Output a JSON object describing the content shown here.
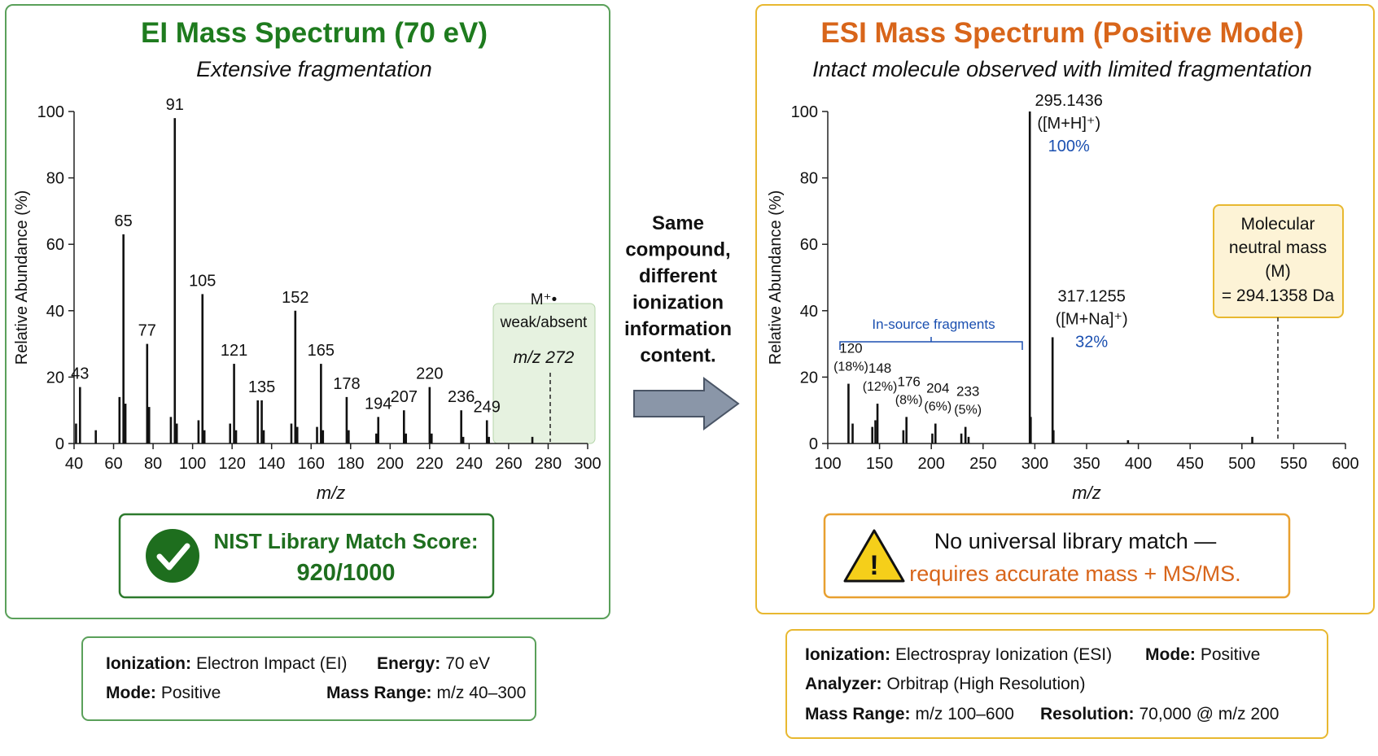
{
  "chart_data": [
    {
      "type": "bar",
      "title": "EI Mass Spectrum (70 eV)",
      "subtitle": "Extensive fragmentation",
      "xlabel": "m/z",
      "ylabel": "Relative Abundance (%)",
      "color": "#111111",
      "title_color": "#1e7b1e",
      "series": [
        {
          "x": [
            43,
            65,
            77,
            91,
            105,
            121,
            135,
            152,
            165,
            178,
            194,
            207,
            220,
            236,
            249
          ],
          "values": [
            17,
            63,
            30,
            98,
            45,
            24,
            13,
            40,
            24,
            14,
            8,
            10,
            17,
            10,
            7
          ]
        },
        {
          "x": [
            41,
            51,
            63,
            66,
            78,
            89,
            92,
            103,
            106,
            119,
            122,
            133,
            136,
            150,
            153,
            163,
            166,
            179,
            193,
            208,
            221,
            237,
            250,
            272
          ],
          "values": [
            6,
            4,
            14,
            12,
            11,
            8,
            6,
            7,
            4,
            6,
            4,
            13,
            4,
            6,
            5,
            5,
            4,
            4,
            3,
            3,
            3,
            2,
            2,
            2
          ]
        }
      ],
      "xlim": [
        40,
        300
      ],
      "xticks": [
        40,
        60,
        80,
        100,
        120,
        140,
        160,
        180,
        200,
        220,
        240,
        260,
        280,
        300
      ],
      "ylim": [
        0,
        100
      ],
      "yticks": [
        0,
        20,
        40,
        60,
        80,
        100
      ],
      "annotation": [
        "M⁺•",
        "weak/absent",
        "m/z 272"
      ]
    },
    {
      "type": "bar",
      "title": "ESI Mass Spectrum (Positive Mode)",
      "subtitle": "Intact molecule observed with limited fragmentation",
      "xlabel": "m/z",
      "ylabel": "Relative Abundance (%)",
      "color": "#111111",
      "title_color": "#d8651a",
      "series": [
        {
          "x": [
            120,
            148,
            176,
            204,
            233,
            295.1436,
            317.1255
          ],
          "values": [
            18,
            12,
            8,
            6,
            5,
            100,
            32
          ],
          "value_labels": [
            "(18%)",
            "(12%)",
            "(8%)",
            "(6%)",
            "(5%)",
            "100%",
            "32%"
          ],
          "ion_labels": [
            null,
            null,
            null,
            null,
            null,
            "([M+H]⁺)",
            "([M+Na]⁺)"
          ]
        },
        {
          "x": [
            124,
            143,
            146,
            173,
            201,
            229,
            236,
            296,
            318,
            390,
            510
          ],
          "values": [
            6,
            5,
            7,
            4,
            3,
            3,
            2,
            8,
            4,
            1,
            2
          ]
        }
      ],
      "xlim": [
        100,
        600
      ],
      "xticks": [
        100,
        150,
        200,
        250,
        300,
        350,
        400,
        450,
        500,
        550,
        600
      ],
      "ylim": [
        0,
        100
      ],
      "yticks": [
        0,
        20,
        40,
        60,
        80,
        100
      ],
      "bracket_label": "In-source fragments",
      "annotation": [
        "Molecular",
        "neutral mass",
        "(M)",
        "= 294.1358 Da"
      ]
    }
  ],
  "center_text": [
    "Same",
    "compound,",
    "different",
    "ionization",
    "information",
    "content."
  ],
  "ei_match": {
    "title": "NIST Library Match Score:",
    "score": "920/1000"
  },
  "esi_match": {
    "line1": "No universal library match —",
    "line2": "requires accurate mass + MS/MS."
  },
  "ei_info": [
    [
      {
        "label": "Ionization:",
        "value": "Electron Impact (EI)"
      },
      {
        "label": "Energy:",
        "value": "70 eV"
      }
    ],
    [
      {
        "label": "Mode:",
        "value": "Positive"
      },
      {
        "label": "Mass Range:",
        "value": "m/z 40–300"
      }
    ]
  ],
  "esi_info": [
    [
      {
        "label": "Ionization:",
        "value": "Electrospray Ionization (ESI)"
      },
      {
        "label": "Mode:",
        "value": "Positive"
      }
    ],
    [
      {
        "label": "Analyzer:",
        "value": "Orbitrap (High Resolution)"
      }
    ],
    [
      {
        "label": "Mass Range:",
        "value": "m/z 100–600"
      },
      {
        "label": "Resolution:",
        "value": "70,000 @ m/z 200"
      }
    ]
  ]
}
